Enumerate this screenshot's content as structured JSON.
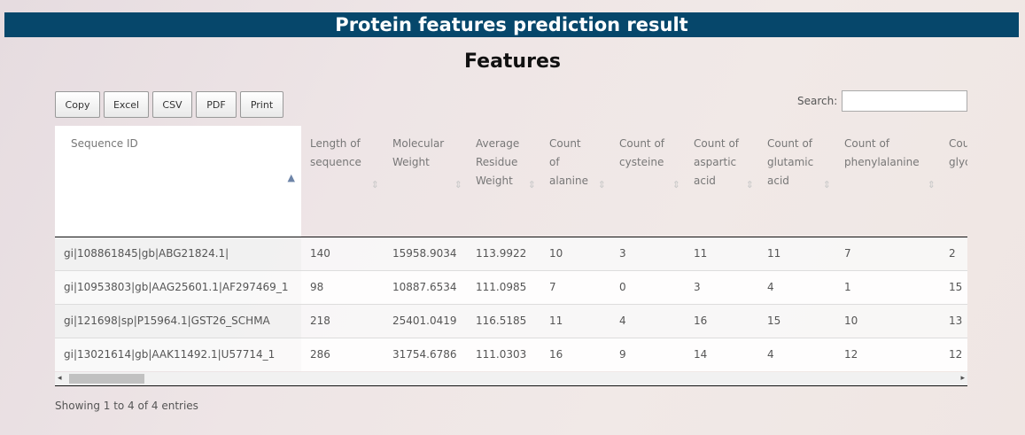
{
  "page": {
    "banner": "Protein features prediction result",
    "title": "Features"
  },
  "toolbar": {
    "buttons": [
      "Copy",
      "Excel",
      "CSV",
      "PDF",
      "Print"
    ],
    "search_label": "Search:",
    "search_value": ""
  },
  "table": {
    "columns": [
      "Sequence ID",
      "Length of sequence",
      "Molecular Weight",
      "Average Residue Weight",
      "Count of alanine",
      "Count of cysteine",
      "Count of aspartic acid",
      "Count of glutamic acid",
      "Count of phenylalanine",
      "Count of glycine"
    ],
    "sorted_column": 0,
    "rows": [
      [
        "gi|108861845|gb|ABG21824.1|",
        "140",
        "15958.9034",
        "113.9922",
        "10",
        "3",
        "11",
        "11",
        "7",
        "2"
      ],
      [
        "gi|10953803|gb|AAG25601.1|AF297469_1",
        "98",
        "10887.6534",
        "111.0985",
        "7",
        "0",
        "3",
        "4",
        "1",
        "15"
      ],
      [
        "gi|121698|sp|P15964.1|GST26_SCHMA",
        "218",
        "25401.0419",
        "116.5185",
        "11",
        "4",
        "16",
        "15",
        "10",
        "13"
      ],
      [
        "gi|13021614|gb|AAK11492.1|U57714_1",
        "286",
        "31754.6786",
        "111.0303",
        "16",
        "9",
        "14",
        "4",
        "12",
        "12"
      ]
    ]
  },
  "scrollbar": {
    "left_arrow": "◂",
    "right_arrow": "▸"
  },
  "footer": {
    "info": "Showing 1 to 4 of 4 entries"
  }
}
